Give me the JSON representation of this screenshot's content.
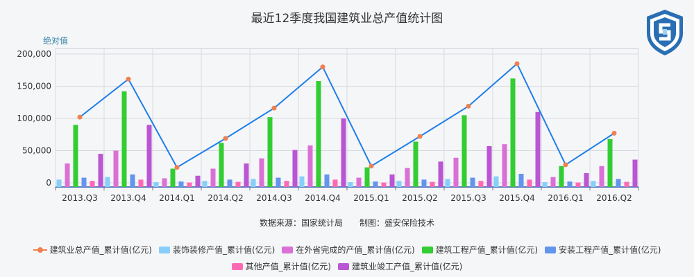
{
  "title": "最近12季度我国建筑业总产值统计图",
  "source_text": "数据来源：国家统计局　　制图：盛安保险技术",
  "chart_data": {
    "type": "bar",
    "title": "最近12季度我国建筑业总产值统计图",
    "ylabel": "绝对值",
    "xlabel": "",
    "ylim": [
      0,
      200000
    ],
    "yticks": [
      "0",
      "50,000",
      "100,000",
      "150,000",
      "200,000"
    ],
    "grid": true,
    "legend_position": "bottom",
    "categories": [
      "2013.Q3",
      "2013.Q4",
      "2014.Q1",
      "2014.Q2",
      "2014.Q3",
      "2014.Q4",
      "2015.Q1",
      "2015.Q2",
      "2015.Q3",
      "2015.Q4",
      "2016.Q1",
      "2016.Q2"
    ],
    "series": [
      {
        "name": "建筑业总产值_累计值(亿元)",
        "kind": "line",
        "color": "#f08050",
        "line_color": "#1e7ee8",
        "values": [
          102000,
          161000,
          24000,
          69000,
          116000,
          180000,
          26000,
          72000,
          119000,
          185000,
          28000,
          77000
        ]
      },
      {
        "name": "装饰装修产值_累计值(亿元)",
        "kind": "bar",
        "color": "#87cefa",
        "values": [
          5000,
          9000,
          1000,
          3000,
          6000,
          10000,
          1000,
          3000,
          6000,
          10000,
          1000,
          3000
        ]
      },
      {
        "name": "在外省完成的产值_累计值(亿元)",
        "kind": "bar",
        "color": "#da70d6",
        "values": [
          30000,
          50000,
          7000,
          22000,
          38000,
          58000,
          8000,
          23000,
          39000,
          60000,
          9000,
          26000
        ]
      },
      {
        "name": "建筑工程产值_累计值(亿元)",
        "kind": "bar",
        "color": "#32cd32",
        "values": [
          90000,
          142000,
          22000,
          62000,
          102000,
          158000,
          24000,
          64000,
          105000,
          162000,
          26000,
          68000
        ]
      },
      {
        "name": "安装工程产值_累计值(亿元)",
        "kind": "bar",
        "color": "#6495ed",
        "values": [
          8000,
          13000,
          2000,
          5000,
          8000,
          13000,
          2000,
          5000,
          8000,
          14000,
          2000,
          6000
        ]
      },
      {
        "name": "其他产值_累计值(亿元)",
        "kind": "bar",
        "color": "#ff69b4",
        "values": [
          3000,
          5000,
          500,
          1500,
          3000,
          5000,
          500,
          1500,
          3000,
          5000,
          500,
          1500
        ]
      },
      {
        "name": "建筑业竣工产值_累计值(亿元)",
        "kind": "bar",
        "color": "#ba55d3",
        "values": [
          45000,
          90000,
          11000,
          30000,
          51000,
          100000,
          13000,
          33000,
          57000,
          110000,
          15000,
          36000
        ]
      }
    ]
  }
}
